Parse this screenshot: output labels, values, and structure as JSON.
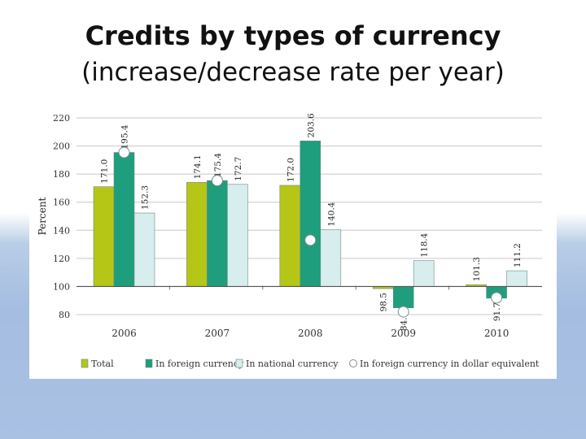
{
  "slide": {
    "title": "Credits by types of currency",
    "subtitle": "(increase/decrease rate per year)"
  },
  "chart_data": {
    "type": "bar",
    "categories": [
      "2006",
      "2007",
      "2008",
      "2009",
      "2010"
    ],
    "ylabel": "Percent",
    "ylim": [
      80,
      220
    ],
    "yticks": [
      80,
      100,
      120,
      140,
      160,
      180,
      200,
      220
    ],
    "baseline": 100,
    "grid": true,
    "legend_position": "bottom",
    "series": [
      {
        "name": "Total",
        "color": "#b5c616",
        "values": [
          171.0,
          174.1,
          172.0,
          98.5,
          101.3
        ],
        "labels": [
          "171.0",
          "174.1",
          "172.0",
          "98.5",
          "101.3"
        ]
      },
      {
        "name": "In foreign currency",
        "color": "#1e9e7c",
        "values": [
          195.4,
          175.4,
          203.6,
          84.8,
          91.7
        ],
        "labels": [
          "195.4",
          "175.4",
          "203.6",
          "84.8",
          "91.7"
        ]
      },
      {
        "name": "In national currency",
        "color": "#d8eded",
        "values": [
          152.3,
          172.7,
          140.4,
          118.4,
          111.2
        ],
        "labels": [
          "152.3",
          "172.7",
          "140.4",
          "118.4",
          "111.2"
        ]
      }
    ],
    "marker_series": {
      "name": "In foreign currency in dollar equivalent",
      "values": [
        195.4,
        175.4,
        133.0,
        82.0,
        92.0
      ]
    }
  }
}
